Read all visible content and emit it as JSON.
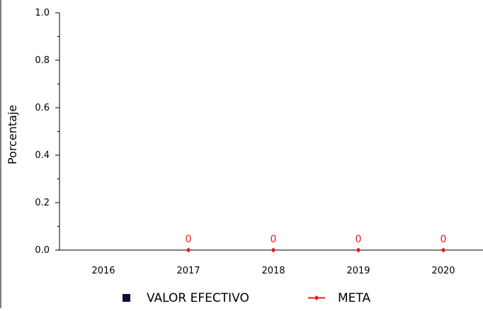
{
  "chart_data": {
    "type": "line",
    "ylabel": "Porcentaje",
    "ylim": [
      0,
      1
    ],
    "yticks": [
      "0.0",
      "0.2",
      "0.4",
      "0.6",
      "0.8",
      "1.0"
    ],
    "categories": [
      "2016",
      "2017",
      "2018",
      "2019",
      "2020"
    ],
    "series": [
      {
        "name": "VALOR EFECTIVO",
        "color": "#0d0d3a",
        "marker": "square",
        "values": [
          null,
          null,
          null,
          null,
          null
        ]
      },
      {
        "name": "META",
        "color": "#e8191a",
        "marker": "diamond-line",
        "values": [
          null,
          0,
          0,
          0,
          0
        ],
        "data_labels": [
          "",
          "0",
          "0",
          "0",
          "0"
        ]
      }
    ],
    "legend_position": "bottom",
    "grid": false
  }
}
